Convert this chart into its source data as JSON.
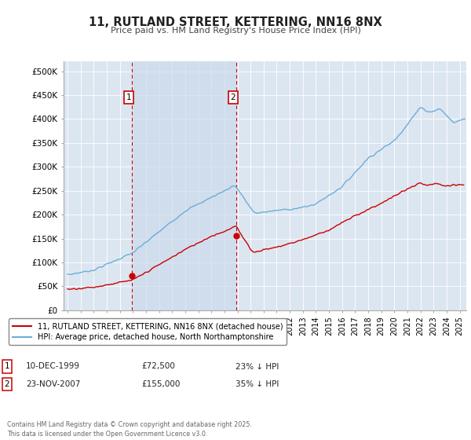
{
  "title": "11, RUTLAND STREET, KETTERING, NN16 8NX",
  "subtitle": "Price paid vs. HM Land Registry's House Price Index (HPI)",
  "ylabel_ticks": [
    "£0",
    "£50K",
    "£100K",
    "£150K",
    "£200K",
    "£250K",
    "£300K",
    "£350K",
    "£400K",
    "£450K",
    "£500K"
  ],
  "ytick_values": [
    0,
    50000,
    100000,
    150000,
    200000,
    250000,
    300000,
    350000,
    400000,
    450000,
    500000
  ],
  "ylim": [
    0,
    520000
  ],
  "xlim_start": 1994.7,
  "xlim_end": 2025.5,
  "background_color": "#dce6f1",
  "shade_color": "#cddcee",
  "figure_bg_color": "#ffffff",
  "hpi_color": "#6baed6",
  "price_color": "#cc0000",
  "vline_color": "#cc0000",
  "marker1_x": 1999.94,
  "marker1_y": 72500,
  "marker1_label": "1",
  "marker1_date": "10-DEC-1999",
  "marker1_price": "£72,500",
  "marker1_hpi": "23% ↓ HPI",
  "marker2_x": 2007.9,
  "marker2_y": 155000,
  "marker2_label": "2",
  "marker2_date": "23-NOV-2007",
  "marker2_price": "£155,000",
  "marker2_hpi": "35% ↓ HPI",
  "legend_line1": "11, RUTLAND STREET, KETTERING, NN16 8NX (detached house)",
  "legend_line2": "HPI: Average price, detached house, North Northamptonshire",
  "footnote": "Contains HM Land Registry data © Crown copyright and database right 2025.\nThis data is licensed under the Open Government Licence v3.0.",
  "xticks": [
    1995,
    1996,
    1997,
    1998,
    1999,
    2000,
    2001,
    2002,
    2003,
    2004,
    2005,
    2006,
    2007,
    2008,
    2009,
    2010,
    2011,
    2012,
    2013,
    2014,
    2015,
    2016,
    2017,
    2018,
    2019,
    2020,
    2021,
    2022,
    2023,
    2024,
    2025
  ]
}
